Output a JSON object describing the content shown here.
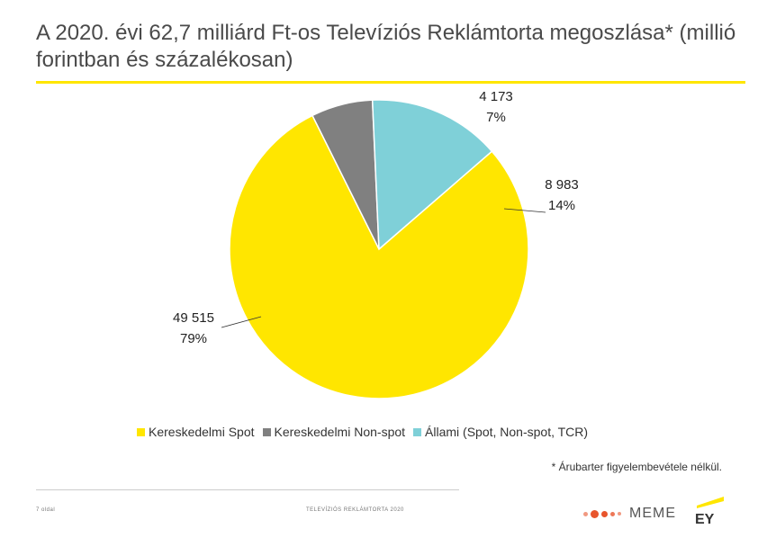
{
  "title": "A 2020. évi 62,7 milliárd Ft-os Televíziós Reklámtorta megoszlása* (millió forintban és százalékosan)",
  "chart_data": {
    "type": "pie",
    "categories": [
      "Kereskedelmi Spot",
      "Kereskedelmi Non-spot",
      "Állami (Spot, Non-spot, TCR)"
    ],
    "values": [
      49515,
      4173,
      8983
    ],
    "percent_labels": [
      "79%",
      "7%",
      "14%"
    ],
    "value_labels": [
      "49 515",
      "4 173",
      "8 983"
    ],
    "colors": [
      "#ffe600",
      "#808080",
      "#7fd0d8"
    ],
    "legend_position": "bottom",
    "start_angle": "between 11 and 12 o'clock, clockwise: Non-spot, Állami, Spot"
  },
  "legend": {
    "items": [
      {
        "label": "Kereskedelmi Spot",
        "color": "#ffe600"
      },
      {
        "label": "Kereskedelmi Non-spot",
        "color": "#808080"
      },
      {
        "label": "Állami (Spot, Non-spot, TCR)",
        "color": "#7fd0d8"
      }
    ]
  },
  "footnote": "* Árubarter figyelembevétele nélkül.",
  "footer": {
    "page": "7 oldal",
    "document": "TELEVÍZIÓS REKLÁMTORTA 2020",
    "meme_logo_text": "MEME",
    "ey_logo_text": "EY"
  },
  "accent_color": "#ffe600"
}
